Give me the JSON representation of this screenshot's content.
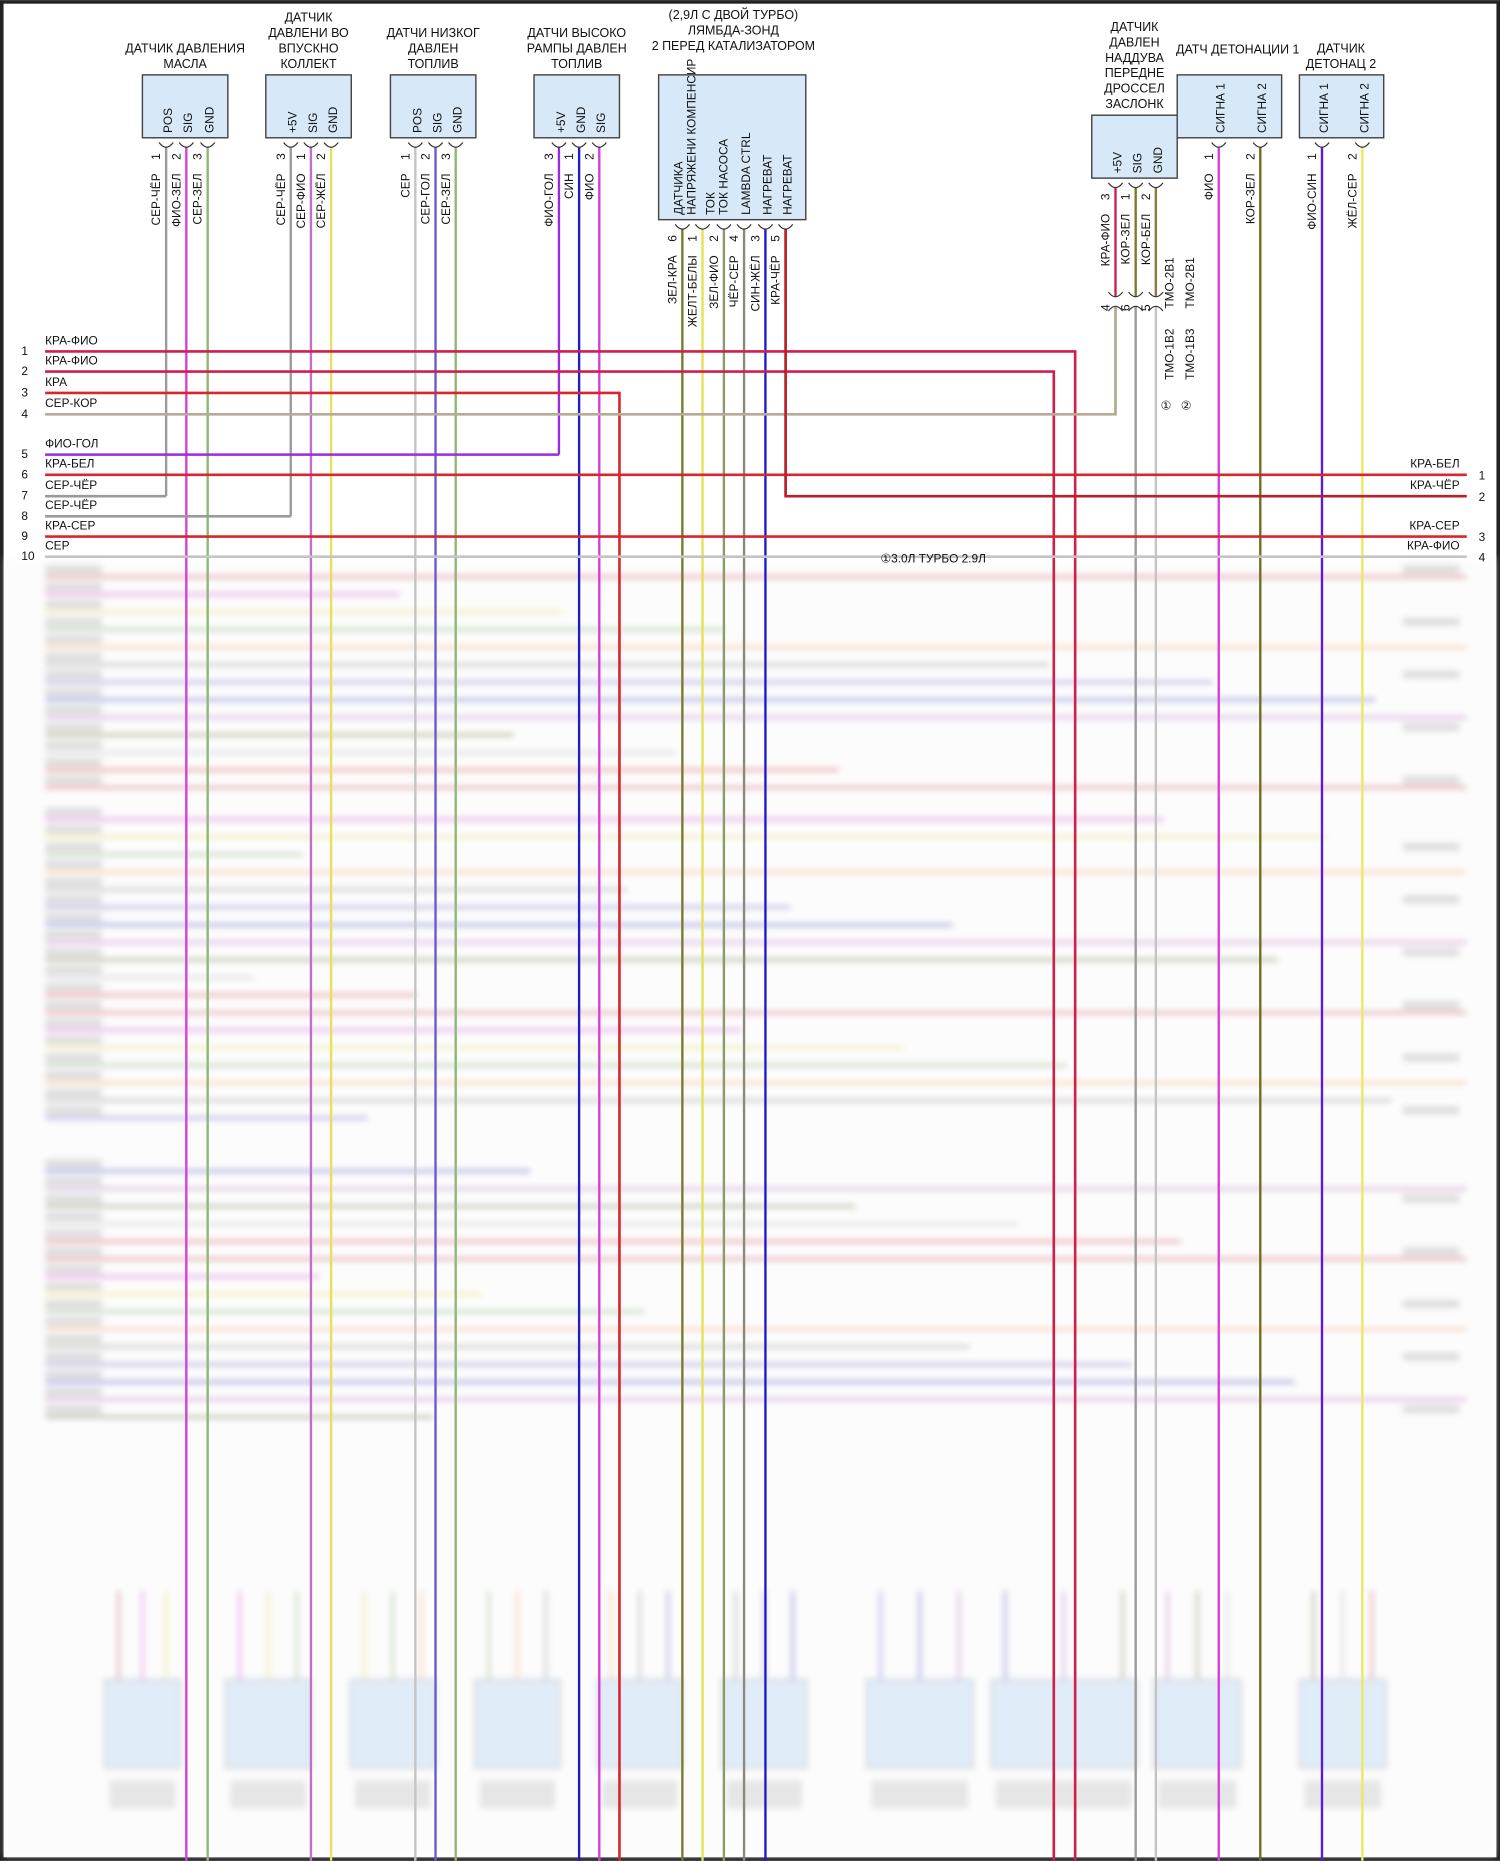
{
  "colors": {
    "box_fill": "#d7e8f8",
    "red": "#d8262e",
    "crimson": "#d0204a",
    "gray": "#9a9a9a",
    "light_gray": "#c4c4c4",
    "magenta": "#d63fd6",
    "green": "#8db873",
    "violet": "#c070c8",
    "yellow": "#e6e05a",
    "slate_blue": "#6a5acd",
    "purple": "#9b2be0",
    "blue": "#1c1ccc",
    "olive": "#7a7a2a",
    "tan": "#b4ac94"
  },
  "connectors": [
    {
      "title": [
        "ДАТЧИК ДАВЛЕНИЯ",
        "МАСЛА"
      ],
      "inner": [
        "POS",
        "SIG",
        "GND"
      ],
      "pins": [
        {
          "num": "1",
          "wire": "СЕР-ЧЁР",
          "color": "#9a9a9a"
        },
        {
          "num": "2",
          "wire": "ФИО-ЗЕЛ",
          "color": "#d63fd6"
        },
        {
          "num": "3",
          "wire": "СЕР-ЗЕЛ",
          "color": "#8db873"
        }
      ]
    },
    {
      "title": [
        "ДАТЧИК",
        "ДАВЛЕНИ ВО",
        "ВПУСКНО",
        "КОЛЛЕКТ"
      ],
      "inner": [
        "+5V",
        "SIG",
        "GND"
      ],
      "pins": [
        {
          "num": "3",
          "wire": "СЕР-ЧЁР",
          "color": "#9a9a9a"
        },
        {
          "num": "1",
          "wire": "СЕР-ФИО",
          "color": "#c070c8"
        },
        {
          "num": "2",
          "wire": "СЕР-ЖЁЛ",
          "color": "#e6e05a"
        }
      ]
    },
    {
      "title": [
        "ДАТЧИ НИЗКОГ",
        "ДАВЛЕН",
        "ТОПЛИВ"
      ],
      "inner": [
        "POS",
        "SIG",
        "GND"
      ],
      "pins": [
        {
          "num": "1",
          "wire": "СЕР",
          "color": "#c4c4c4"
        },
        {
          "num": "2",
          "wire": "СЕР-ГОЛ",
          "color": "#6a5acd"
        },
        {
          "num": "3",
          "wire": "СЕР-ЗЕЛ",
          "color": "#8db873"
        }
      ]
    },
    {
      "title": [
        "ДАТЧИ ВЫСОКО",
        "РАМПЫ ДАВЛЕН",
        "ТОПЛИВ"
      ],
      "inner": [
        "+5V",
        "GND",
        "SIG"
      ],
      "pins": [
        {
          "num": "3",
          "wire": "ФИО-ГОЛ",
          "color": "#9b2be0"
        },
        {
          "num": "1",
          "wire": "СИН",
          "color": "#1c1ccc"
        },
        {
          "num": "2",
          "wire": "ФИО",
          "color": "#d63fd6"
        }
      ]
    },
    {
      "title": [
        "(2,9Л С ДВОЙ ТУРБО)",
        "ЛЯМБДА-ЗОНД",
        "2 ПЕРЕД КАТАЛИЗАТОРОМ"
      ],
      "inner": [
        "ДАТЧИКА",
        "НАПРЯЖЕНИ КОМПЕНСИР",
        "ТОК",
        "ТОК НАСОСА",
        "LAMBDA CTRL",
        "НАГРЕВАТ",
        "НАГРЕВАТ"
      ],
      "pins": [
        {
          "num": "6",
          "wire": "ЗЕЛ-КРА",
          "color": "#7a7a2a"
        },
        {
          "num": "1",
          "wire": "ЖЕЛТ-БЕЛЫ",
          "color": "#e6e05a"
        },
        {
          "num": "2",
          "wire": "ЗЕЛ-ФИО",
          "color": "#8a9a6a"
        },
        {
          "num": "4",
          "wire": "ЧЁР-СЕР",
          "color": "#8a8a7a"
        },
        {
          "num": "3",
          "wire": "СИН-ЖЁЛ",
          "color": "#1c1ccc"
        },
        {
          "num": "5",
          "wire": "КРА-ЧЁР",
          "color": "#b8202a"
        }
      ]
    },
    {
      "title": [
        "ДАТЧИК",
        "ДАВЛЕН",
        "НАДДУВА",
        "ПЕРЕДНЕ",
        "ДРОССЕЛ",
        "ЗАСЛОНК"
      ],
      "inner": [
        "+5V",
        "SIG",
        "GND"
      ],
      "pins": [
        {
          "num": "3",
          "wire": "КРА-ФИО",
          "color": "#d0204a",
          "num2": "4"
        },
        {
          "num": "1",
          "wire": "КОР-ЗЕЛ",
          "color": "#7a7a2a",
          "num2": "6"
        },
        {
          "num": "2",
          "wire": "КОР-БЕЛ",
          "color": "#8a7a40",
          "num2": "5"
        }
      ]
    },
    {
      "title": [
        "ДАТЧ ДЕТОНАЦИИ 1"
      ],
      "inner": [
        "СИГНА 1",
        "СИГНА 2"
      ],
      "pins": [
        {
          "num": "1",
          "wire": "ФИО",
          "color": "#d63fd6"
        },
        {
          "num": "2",
          "wire": "КОР-ЗЕЛ",
          "color": "#6e6e20"
        }
      ]
    },
    {
      "title": [
        "ДАТЧИК",
        "ДЕТОНАЦ 2"
      ],
      "inner": [
        "СИГНА 1",
        "СИГНА 2"
      ],
      "pins": [
        {
          "num": "1",
          "wire": "ФИО-СИН",
          "color": "#5a1ad8"
        },
        {
          "num": "2",
          "wire": "ЖЁЛ-СЕР",
          "color": "#ece860"
        }
      ]
    }
  ],
  "splice_labels": {
    "tmo_2b1_a": "ТМО-2В1",
    "tmo_2b1_b": "ТМО-2В1",
    "tmo_1b2": "ТМО-1В2",
    "tmo_1b3": "ТМО-1В3",
    "note1": "①",
    "note2": "②",
    "footnote": "①3.0Л ТУРБО 2.9Л"
  },
  "left_rows": [
    {
      "num": "1",
      "label": "КРА-ФИО",
      "color": "#d0204a"
    },
    {
      "num": "2",
      "label": "КРА-ФИО",
      "color": "#d0204a"
    },
    {
      "num": "3",
      "label": "КРА",
      "color": "#d8262e"
    },
    {
      "num": "4",
      "label": "СЕР-КОР",
      "color": "#b4ac94"
    },
    {
      "num": "5",
      "label": "ФИО-ГОЛ",
      "color": "#9b2be0"
    },
    {
      "num": "6",
      "label": "КРА-БЕЛ",
      "color": "#d8262e"
    },
    {
      "num": "7",
      "label": "СЕР-ЧЁР",
      "color": "#9a9a9a"
    },
    {
      "num": "8",
      "label": "СЕР-ЧЁР",
      "color": "#9a9a9a"
    },
    {
      "num": "9",
      "label": "КРА-СЕР",
      "color": "#d8262e"
    },
    {
      "num": "10",
      "label": "СЕР",
      "color": "#c4c4c4"
    }
  ],
  "right_rows": [
    {
      "num": "1",
      "label": "КРА-БЕЛ"
    },
    {
      "num": "2",
      "label": "КРА-ЧЁР"
    },
    {
      "num": "3",
      "label": "КРА-СЕР"
    },
    {
      "num": "4",
      "label": "КРА-ФИО"
    }
  ]
}
